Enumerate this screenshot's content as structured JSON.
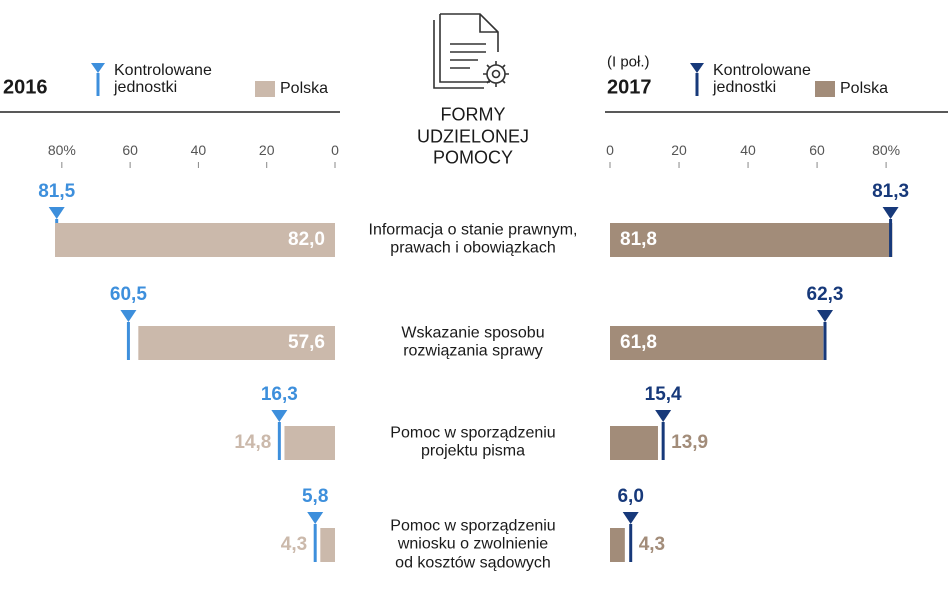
{
  "chart_data": {
    "type": "butterfly",
    "title": "FORMY\nUDZIELONEJ\nPOMOCY",
    "categories": [
      "Informacja o stanie prawnym,\nprawach i obowiązkach",
      "Wskazanie sposobu\nrozwiązania sprawy",
      "Pomoc w sporządzeniu\nprojektu pisma",
      "Pomoc w sporządzeniu\nwniosku o zwolnienie\nod kosztów sądowych"
    ],
    "panels": [
      {
        "side": "left",
        "label": "2016",
        "xlim": [
          0,
          82
        ],
        "xticks": [
          {
            "value": 80,
            "label": "80%"
          },
          60,
          40,
          20,
          0
        ],
        "series": [
          {
            "name": "Kontrolowane\njednostki",
            "kind": "marker",
            "color": "#3d8fdc",
            "values": [
              81.5,
              60.5,
              16.3,
              5.8
            ],
            "value_labels": [
              "81,5",
              "60,5",
              "16,3",
              "5,8"
            ]
          },
          {
            "name": "Polska",
            "kind": "bar",
            "color": "#cbb9ab",
            "values": [
              82.0,
              57.6,
              14.8,
              4.3
            ],
            "value_labels": [
              "82,0",
              "57,6",
              "14,8",
              "4,3"
            ]
          }
        ]
      },
      {
        "side": "right",
        "note": "(I poł.)",
        "label": "2017",
        "xlim": [
          0,
          82
        ],
        "xticks": [
          0,
          20,
          40,
          60,
          {
            "value": 80,
            "label": "80%"
          }
        ],
        "series": [
          {
            "name": "Polska",
            "kind": "bar",
            "color": "#a28c79",
            "values": [
              81.8,
              61.8,
              13.9,
              4.3
            ],
            "value_labels": [
              "81,8",
              "61,8",
              "13,9",
              "4,3"
            ]
          },
          {
            "name": "Kontrolowane\njednostki",
            "kind": "marker",
            "color": "#17397a",
            "values": [
              81.3,
              62.3,
              15.4,
              6.0
            ],
            "value_labels": [
              "81,3",
              "62,3",
              "15,4",
              "6,0"
            ]
          }
        ]
      }
    ]
  }
}
